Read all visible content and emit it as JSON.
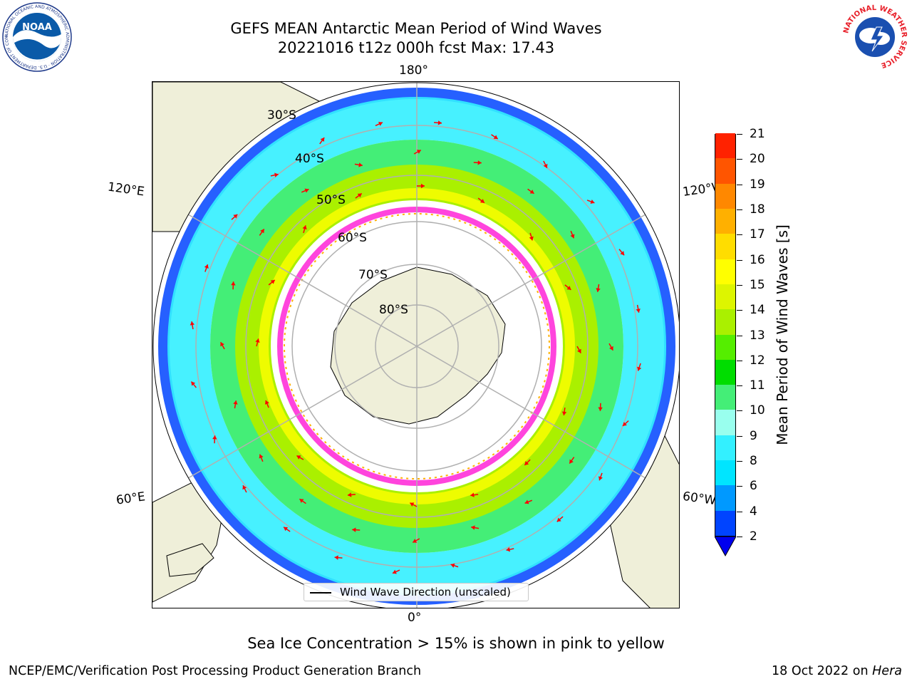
{
  "header": {
    "title_line1": "GEFS MEAN Antarctic Mean Period of Wind Waves",
    "title_line2": "20221016 t12z 000h fcst   Max: 17.43"
  },
  "logos": {
    "noaa_text": "NOAA",
    "noaa_ring_text": "NATIONAL OCEANIC AND ATMOSPHERIC ADMINISTRATION · U.S. DEPARTMENT OF COMMERCE",
    "nws_ring_text": "NATIONAL WEATHER SERVICE"
  },
  "map": {
    "longitude_labels": {
      "top": "180°",
      "bottom": "0°",
      "upper_left": "120°E",
      "upper_right": "120°W",
      "lower_left": "60°E",
      "lower_right": "60°W"
    },
    "latitude_labels": [
      "30°S",
      "40°S",
      "50°S",
      "60°S",
      "70°S",
      "80°S"
    ],
    "legend_label": "Wind Wave Direction (unscaled)",
    "colors": {
      "land": "#efefd9",
      "grid": "#b0b0b0",
      "arrow": "#ff0000",
      "sea_ice": "#ff44dd"
    }
  },
  "colorbar": {
    "label": "Mean Period of Wind Waves [s]",
    "ticks": [
      "2",
      "4",
      "6",
      "8",
      "9",
      "10",
      "11",
      "12",
      "13",
      "14",
      "15",
      "16",
      "17",
      "18",
      "19",
      "20",
      "21"
    ],
    "colors": [
      "#0044ff",
      "#0099ff",
      "#00e5ff",
      "#33f0ff",
      "#99ffee",
      "#44ee77",
      "#00dd00",
      "#55ee00",
      "#aaf000",
      "#ddf500",
      "#ffff00",
      "#ffdd00",
      "#ffb000",
      "#ff8800",
      "#ff5500",
      "#ff2200"
    ],
    "under_color": "#0000ee"
  },
  "footer": {
    "note": "Sea Ice Concentration > 15% is shown in pink to yellow",
    "credit": "NCEP/EMC/Verification Post Processing Product Generation Branch",
    "date": "18 Oct 2022 on",
    "machine": "Hera"
  }
}
